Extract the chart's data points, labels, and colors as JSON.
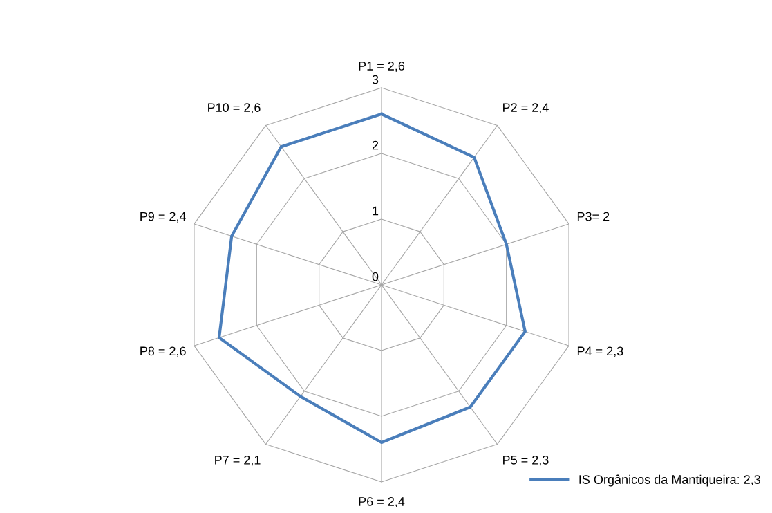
{
  "chart_data": {
    "type": "radar",
    "categories": [
      "P1 = 2,6",
      "P2 = 2,4",
      "P3= 2",
      "P4 = 2,3",
      "P5 = 2,3",
      "P6 = 2,4",
      "P7 = 2,1",
      "P8 = 2,6",
      "P9 = 2,4",
      "P10 = 2,6"
    ],
    "series": [
      {
        "name": "IS Orgânicos da Mantiqueira: 2,3",
        "color": "#4a7ebb",
        "values": [
          2.6,
          2.4,
          2,
          2.3,
          2.3,
          2.4,
          2.1,
          2.6,
          2.4,
          2.6
        ]
      }
    ],
    "ylim": [
      0,
      3
    ],
    "yticks": [
      0,
      1,
      2,
      3
    ],
    "grid": true,
    "legend": "bottom right",
    "marker": "none",
    "line_style": "solid"
  }
}
